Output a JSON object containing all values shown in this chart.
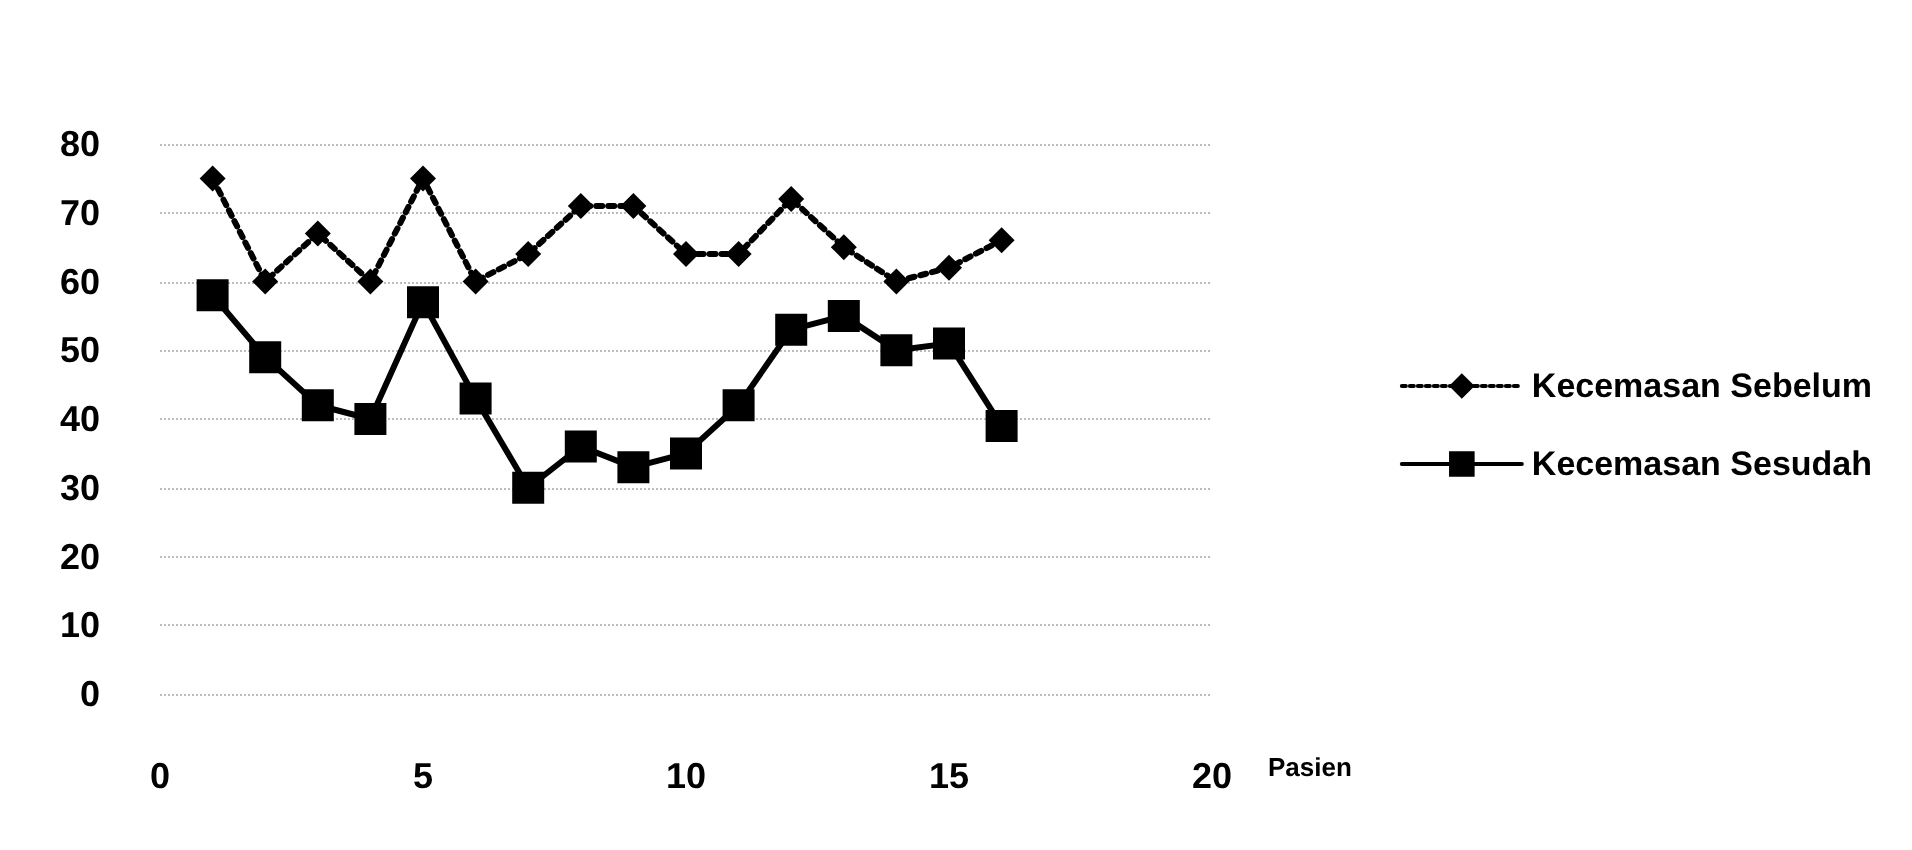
{
  "chart_data": {
    "type": "line",
    "xlabel": "Pasien",
    "x": [
      1,
      2,
      3,
      4,
      5,
      6,
      7,
      8,
      9,
      10,
      11,
      12,
      13,
      14,
      15,
      16
    ],
    "xlim": [
      0,
      20
    ],
    "xticks": [
      0,
      5,
      10,
      15,
      20
    ],
    "ylim": [
      0,
      80
    ],
    "yticks": [
      0,
      10,
      20,
      30,
      40,
      50,
      60,
      70,
      80
    ],
    "grid": "y",
    "legend": "right",
    "series": [
      {
        "name": "Kecemasan Sebelum",
        "color": "#000000",
        "marker": "diamond",
        "line_style": "dotted",
        "values": [
          75,
          60,
          67,
          60,
          75,
          60,
          64,
          71,
          71,
          64,
          64,
          72,
          65,
          60,
          62,
          66
        ]
      },
      {
        "name": "Kecemasan Sesudah",
        "color": "#000000",
        "marker": "square",
        "line_style": "solid",
        "values": [
          58,
          49,
          42,
          40,
          57,
          43,
          30,
          36,
          33,
          35,
          42,
          53,
          55,
          50,
          51,
          39
        ]
      }
    ]
  }
}
